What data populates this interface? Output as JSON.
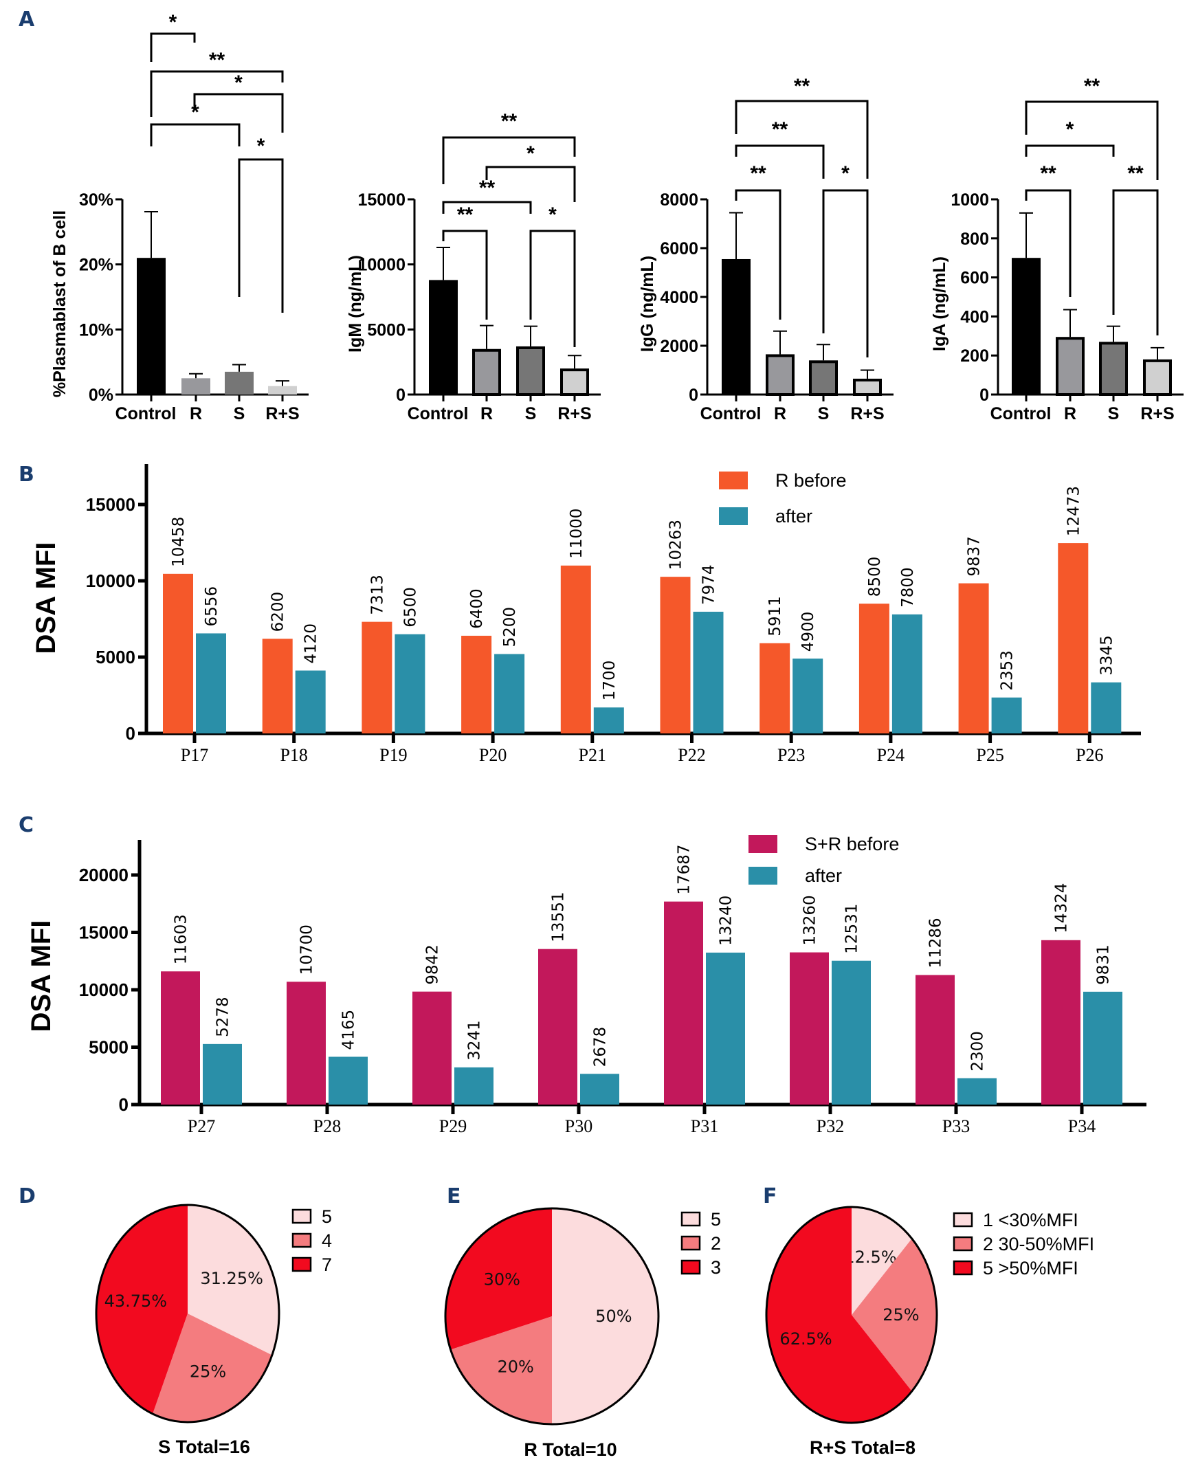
{
  "figure": {
    "panel_letters": [
      "A",
      "B",
      "C",
      "D",
      "E",
      "F"
    ],
    "colors": {
      "panel_letter": "#1a3d6e",
      "control": "#000000",
      "r": "#98989c",
      "s": "#767676",
      "rs": "#d0d0d0",
      "r_before": "#f5582a",
      "sr_before": "#c2185b",
      "after": "#2a8fa8",
      "pie_light": "#fcdcdd",
      "pie_mid": "#f47c7f",
      "pie_dark": "#f20a1f"
    }
  },
  "chart_data": [
    {
      "panel": "A",
      "type": "bar",
      "title": "",
      "xlabel": "",
      "ylabel": "%Plasmablast of B cell",
      "categories": [
        "Control",
        "R",
        "S",
        "R+S"
      ],
      "values": [
        21.0,
        2.5,
        3.5,
        1.3
      ],
      "error_upper": [
        28.1,
        3.2,
        4.6,
        2.1
      ],
      "ylim": [
        0,
        30
      ],
      "yticks": [
        0,
        10,
        20,
        30
      ],
      "ytick_labels": [
        "0%",
        "10%",
        "20%",
        "30%"
      ],
      "significance": [
        {
          "from": 0,
          "to": 1,
          "label": "*"
        },
        {
          "from": 0,
          "to": 3,
          "label": "**"
        },
        {
          "from": 1,
          "to": 3,
          "label": "*"
        },
        {
          "from": 0,
          "to": 2,
          "label": "*"
        },
        {
          "from": 2,
          "to": 3,
          "label": "*"
        }
      ]
    },
    {
      "panel": "A",
      "type": "bar",
      "title": "",
      "xlabel": "",
      "ylabel": "IgM (ng/mL)",
      "categories": [
        "Control",
        "R",
        "S",
        "R+S"
      ],
      "values": [
        8800,
        3500,
        3700,
        2000
      ],
      "error_upper": [
        11300,
        5300,
        5250,
        3000
      ],
      "ylim": [
        0,
        15000
      ],
      "yticks": [
        0,
        5000,
        10000,
        15000
      ],
      "ytick_labels": [
        "0",
        "5000",
        "10000",
        "15000"
      ],
      "significance": [
        {
          "from": 0,
          "to": 3,
          "label": "**"
        },
        {
          "from": 1,
          "to": 3,
          "label": "*"
        },
        {
          "from": 0,
          "to": 2,
          "label": "**"
        },
        {
          "from": 0,
          "to": 1,
          "label": "**"
        },
        {
          "from": 2,
          "to": 3,
          "label": "*"
        }
      ]
    },
    {
      "panel": "A",
      "type": "bar",
      "title": "",
      "xlabel": "",
      "ylabel": "IgG (ng/mL)",
      "categories": [
        "Control",
        "R",
        "S",
        "R+S"
      ],
      "values": [
        5550,
        1650,
        1400,
        650
      ],
      "error_upper": [
        7450,
        2600,
        2050,
        1000
      ],
      "ylim": [
        0,
        8000
      ],
      "yticks": [
        0,
        2000,
        4000,
        6000,
        8000
      ],
      "ytick_labels": [
        "0",
        "2000",
        "4000",
        "6000",
        "8000"
      ],
      "significance": [
        {
          "from": 0,
          "to": 3,
          "label": "**"
        },
        {
          "from": 0,
          "to": 2,
          "label": "**"
        },
        {
          "from": 0,
          "to": 1,
          "label": "**"
        },
        {
          "from": 2,
          "to": 3,
          "label": "*"
        }
      ]
    },
    {
      "panel": "A",
      "type": "bar",
      "title": "",
      "xlabel": "",
      "ylabel": "IgA (ng/mL)",
      "categories": [
        "Control",
        "R",
        "S",
        "R+S"
      ],
      "values": [
        700,
        295,
        270,
        180
      ],
      "error_upper": [
        930,
        435,
        350,
        240
      ],
      "ylim": [
        0,
        1000
      ],
      "yticks": [
        0,
        200,
        400,
        600,
        800,
        1000
      ],
      "ytick_labels": [
        "0",
        "200",
        "400",
        "600",
        "800",
        "1000"
      ],
      "significance": [
        {
          "from": 0,
          "to": 3,
          "label": "**"
        },
        {
          "from": 0,
          "to": 2,
          "label": "*"
        },
        {
          "from": 0,
          "to": 1,
          "label": "**"
        },
        {
          "from": 2,
          "to": 3,
          "label": "**"
        }
      ]
    },
    {
      "panel": "B",
      "type": "bar",
      "title": "",
      "xlabel": "",
      "ylabel": "DSA MFI",
      "categories": [
        "P17",
        "P18",
        "P19",
        "P20",
        "P21",
        "P22",
        "P23",
        "P24",
        "P25",
        "P26"
      ],
      "series": [
        {
          "name": "R before",
          "values": [
            10458,
            6200,
            7313,
            6400,
            11000,
            10263,
            5911,
            8500,
            9837,
            12473
          ]
        },
        {
          "name": "after",
          "values": [
            6556,
            4120,
            6500,
            5200,
            1700,
            7974,
            4900,
            7800,
            2353,
            3345
          ]
        }
      ],
      "ylim": [
        0,
        17600
      ],
      "yticks": [
        0,
        5000,
        10000,
        15000
      ],
      "ytick_labels": [
        "0",
        "5000",
        "10000",
        "15000"
      ],
      "legend": "top-right"
    },
    {
      "panel": "C",
      "type": "bar",
      "title": "",
      "xlabel": "",
      "ylabel": "DSA MFI",
      "categories": [
        "P27",
        "P28",
        "P29",
        "P30",
        "P31",
        "P32",
        "P33",
        "P34"
      ],
      "series": [
        {
          "name": "S+R before",
          "values": [
            11603,
            10700,
            9842,
            13551,
            17687,
            13260,
            11286,
            14324
          ]
        },
        {
          "name": "after",
          "values": [
            5278,
            4165,
            3241,
            2678,
            13240,
            12531,
            2300,
            9831
          ]
        }
      ],
      "ylim": [
        0,
        23000
      ],
      "yticks": [
        0,
        5000,
        10000,
        15000,
        20000
      ],
      "ytick_labels": [
        "0",
        "5000",
        "10000",
        "15000",
        "20000"
      ],
      "legend": "top-right"
    },
    {
      "panel": "D",
      "type": "pie",
      "title": "S Total=16",
      "labels": [
        "5",
        "4",
        "7"
      ],
      "values": [
        5,
        4,
        7
      ],
      "percent_labels": [
        "31.25%",
        "25%",
        "43.75%"
      ]
    },
    {
      "panel": "E",
      "type": "pie",
      "title": "R Total=10",
      "labels": [
        "5",
        "2",
        "3"
      ],
      "values": [
        5,
        2,
        3
      ],
      "percent_labels": [
        "50%",
        "20%",
        "30%"
      ]
    },
    {
      "panel": "F",
      "type": "pie",
      "title": "R+S Total=8",
      "labels": [
        "1 <30%MFI",
        "2 30-50%MFI",
        "5 >50%MFI"
      ],
      "values": [
        1,
        2,
        5
      ],
      "percent_labels": [
        "12.5%",
        "25%",
        "62.5%"
      ]
    }
  ]
}
